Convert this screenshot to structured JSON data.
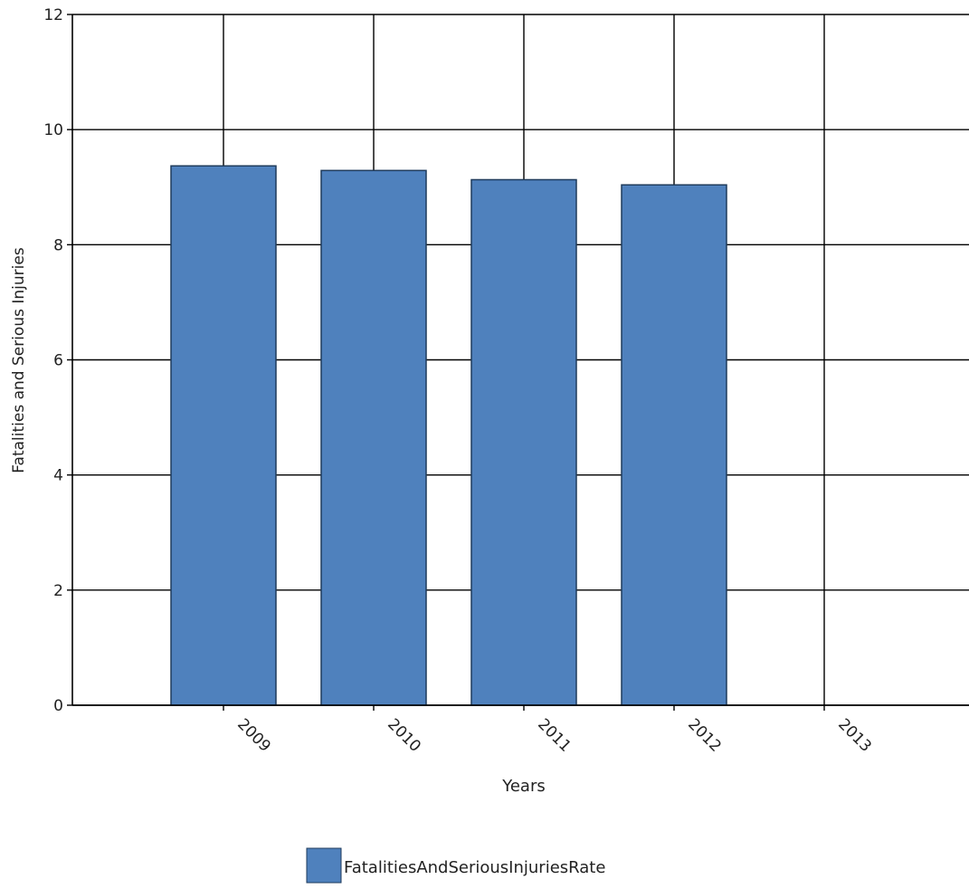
{
  "chart_data": {
    "type": "bar",
    "xlabel": "Years",
    "ylabel": "Fatalities and Serious Injuries",
    "categories": [
      "2009",
      "2010",
      "2011",
      "2012",
      "2013"
    ],
    "series": [
      {
        "name": "FatalitiesAndSeriousInjuriesRate",
        "values": [
          9.37,
          9.29,
          9.13,
          9.04,
          null
        ],
        "color": "#4f81bd"
      }
    ],
    "ylim": [
      0,
      12
    ],
    "yticks": [
      0,
      2,
      4,
      6,
      8,
      10,
      12
    ],
    "grid": true,
    "legend_position": "bottom-center"
  }
}
